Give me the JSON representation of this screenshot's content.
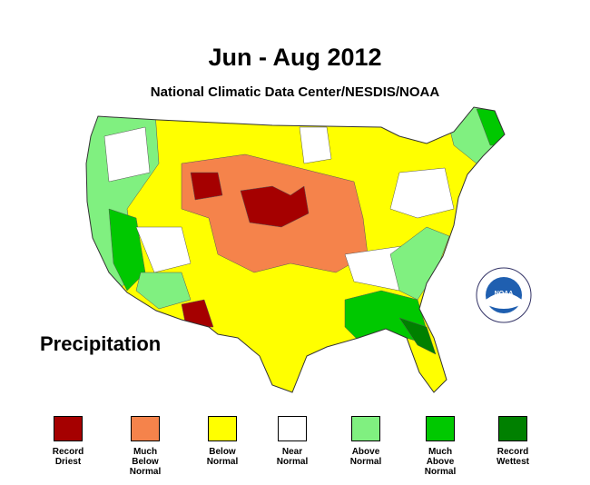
{
  "title": "Jun - Aug 2012",
  "subtitle": "National Climatic Data Center/NESDIS/NOAA",
  "map_label": "Precipitation",
  "legend": [
    {
      "label": "Record Driest",
      "color": "#a50000"
    },
    {
      "label": "Much Below Normal",
      "color": "#f5834b"
    },
    {
      "label": "Below Normal",
      "color": "#ffff00"
    },
    {
      "label": "Near Normal",
      "color": "#ffffff"
    },
    {
      "label": "Above Normal",
      "color": "#80f080"
    },
    {
      "label": "Much Above Normal",
      "color": "#00c800"
    },
    {
      "label": "Record Wettest",
      "color": "#008000"
    }
  ]
}
